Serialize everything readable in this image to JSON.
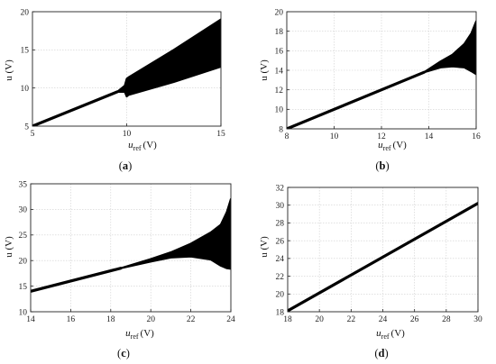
{
  "chart_data": [
    {
      "panel": "a",
      "type": "line",
      "caption_letter": "a",
      "xlabel_main": "u",
      "xlabel_sub": "ref",
      "xlabel_unit": "(V)",
      "ylabel": "u (V)",
      "xlim": [
        5,
        15
      ],
      "ylim": [
        5,
        20
      ],
      "xticks": [
        5,
        10,
        15
      ],
      "yticks": [
        5,
        10,
        15,
        20
      ],
      "grid": true,
      "series": [
        {
          "kind": "line",
          "x": [
            5,
            9.5
          ],
          "y": [
            5,
            9.5
          ]
        },
        {
          "kind": "band",
          "x": [
            9.5,
            9.9,
            10.0,
            10.1,
            12.5,
            15.0
          ],
          "ylow": [
            9.5,
            9.5,
            8.9,
            9.1,
            10.8,
            12.8
          ],
          "yhigh": [
            9.5,
            10.3,
            11.2,
            11.4,
            15.0,
            19.0
          ]
        }
      ]
    },
    {
      "panel": "b",
      "type": "line",
      "caption_letter": "b",
      "xlabel_main": "u",
      "xlabel_sub": "ref",
      "xlabel_unit": "(V)",
      "ylabel": "u (V)",
      "xlim": [
        8,
        16
      ],
      "ylim": [
        8,
        20
      ],
      "xticks": [
        8,
        10,
        12,
        14,
        16
      ],
      "yticks": [
        8,
        10,
        12,
        14,
        16,
        18,
        20
      ],
      "grid": true,
      "series": [
        {
          "kind": "line",
          "x": [
            8,
            13.8
          ],
          "y": [
            8,
            13.8
          ]
        },
        {
          "kind": "band",
          "x": [
            13.8,
            14.5,
            15.0,
            15.5,
            15.8,
            16.0
          ],
          "ylow": [
            13.8,
            14.3,
            14.4,
            14.3,
            13.9,
            13.6
          ],
          "yhigh": [
            13.8,
            14.9,
            15.6,
            16.7,
            17.8,
            19.0
          ]
        }
      ]
    },
    {
      "panel": "c",
      "type": "line",
      "caption_letter": "c",
      "xlabel_main": "u",
      "xlabel_sub": "ref",
      "xlabel_unit": "(V)",
      "ylabel": "u (V)",
      "xlim": [
        14,
        24
      ],
      "ylim": [
        10,
        35
      ],
      "xticks": [
        14,
        16,
        18,
        20,
        22,
        24
      ],
      "yticks": [
        10,
        15,
        20,
        25,
        30,
        35
      ],
      "grid": true,
      "series": [
        {
          "kind": "line",
          "x": [
            14,
            18.5
          ],
          "y": [
            14.0,
            18.5
          ]
        },
        {
          "kind": "band",
          "x": [
            18.5,
            20,
            21,
            22,
            23,
            23.5,
            23.8,
            24.0
          ],
          "ylow": [
            18.5,
            19.8,
            20.6,
            20.8,
            20.2,
            19.0,
            18.5,
            18.4
          ],
          "yhigh": [
            18.5,
            20.3,
            21.6,
            23.3,
            25.5,
            27.0,
            29.5,
            32.0
          ]
        }
      ]
    },
    {
      "panel": "d",
      "type": "line",
      "caption_letter": "d",
      "xlabel_main": "u",
      "xlabel_sub": "ref",
      "xlabel_unit": "(V)",
      "ylabel": "u (V)",
      "xlim": [
        18,
        30
      ],
      "ylim": [
        18,
        32
      ],
      "xticks": [
        18,
        20,
        22,
        24,
        26,
        28,
        30
      ],
      "yticks": [
        18,
        20,
        22,
        24,
        26,
        28,
        30,
        32
      ],
      "grid": true,
      "series": [
        {
          "kind": "line",
          "x": [
            18,
            30
          ],
          "y": [
            18.1,
            30.2
          ]
        }
      ]
    }
  ]
}
